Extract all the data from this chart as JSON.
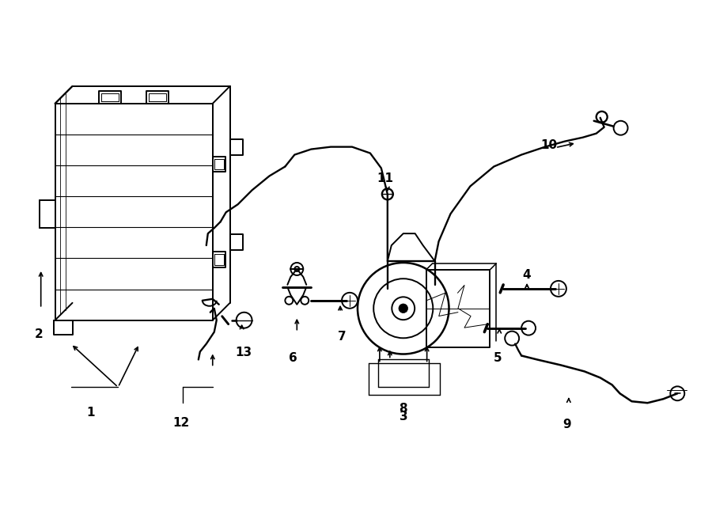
{
  "bg_color": "#ffffff",
  "line_color": "#000000",
  "lw": 1.4,
  "fig_width": 9.0,
  "fig_height": 6.61,
  "dpi": 100
}
